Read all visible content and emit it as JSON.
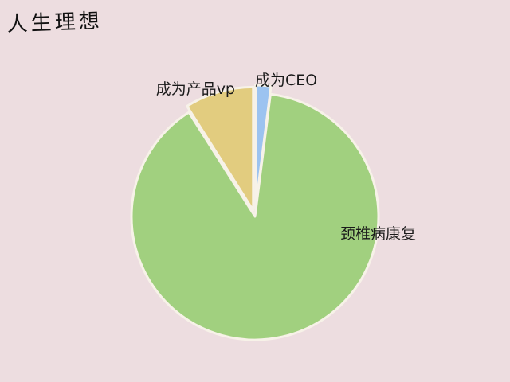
{
  "chart_data": {
    "type": "pie",
    "title": "人生理想",
    "exploded": true,
    "slices": [
      {
        "label": "成为CEO",
        "value": 2,
        "color": "#9cc3f0"
      },
      {
        "label": "颈椎病康复",
        "value": 89,
        "color": "#a1d07f"
      },
      {
        "label": "成为产品vp",
        "value": 9,
        "color": "#e2cc7f"
      }
    ]
  }
}
